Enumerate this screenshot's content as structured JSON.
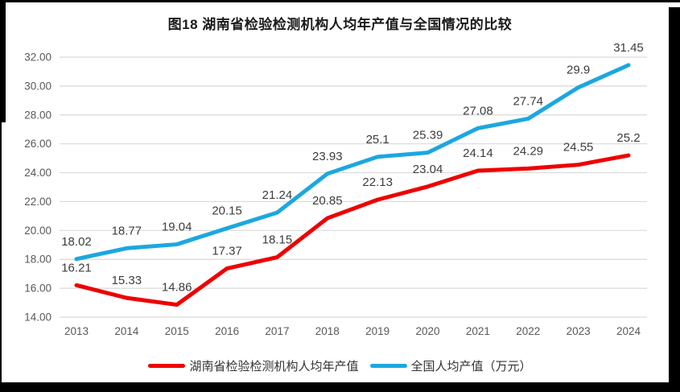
{
  "chart_data": {
    "type": "line",
    "title": "图18 湖南省检验检测机构人均年产值与全国情况的比较",
    "categories": [
      "2013",
      "2014",
      "2015",
      "2016",
      "2017",
      "2018",
      "2019",
      "2020",
      "2021",
      "2022",
      "2023",
      "2024"
    ],
    "series": [
      {
        "name": "湖南省检验检测机构人均年产值",
        "color": "#ee0000",
        "values": [
          16.21,
          15.33,
          14.86,
          17.37,
          18.15,
          20.85,
          22.13,
          23.04,
          24.14,
          24.29,
          24.55,
          25.2
        ]
      },
      {
        "name": "全国人均产值（万元）",
        "color": "#1ca7e0",
        "values": [
          18.02,
          18.77,
          19.04,
          20.15,
          21.24,
          23.93,
          25.1,
          25.39,
          27.08,
          27.74,
          29.9,
          31.45
        ]
      }
    ],
    "xlabel": "",
    "ylabel": "",
    "ylim": [
      14,
      32
    ],
    "ytick_step": 2,
    "yticks": [
      "14.00",
      "16.00",
      "18.00",
      "20.00",
      "22.00",
      "24.00",
      "26.00",
      "28.00",
      "30.00",
      "32.00"
    ],
    "grid": true,
    "data_labels": true,
    "legend_position": "bottom"
  },
  "colors": {
    "gridline": "#d9d9d9",
    "tick_text": "#595959",
    "data_label": "#3d3d3d",
    "frame": "#000000"
  }
}
